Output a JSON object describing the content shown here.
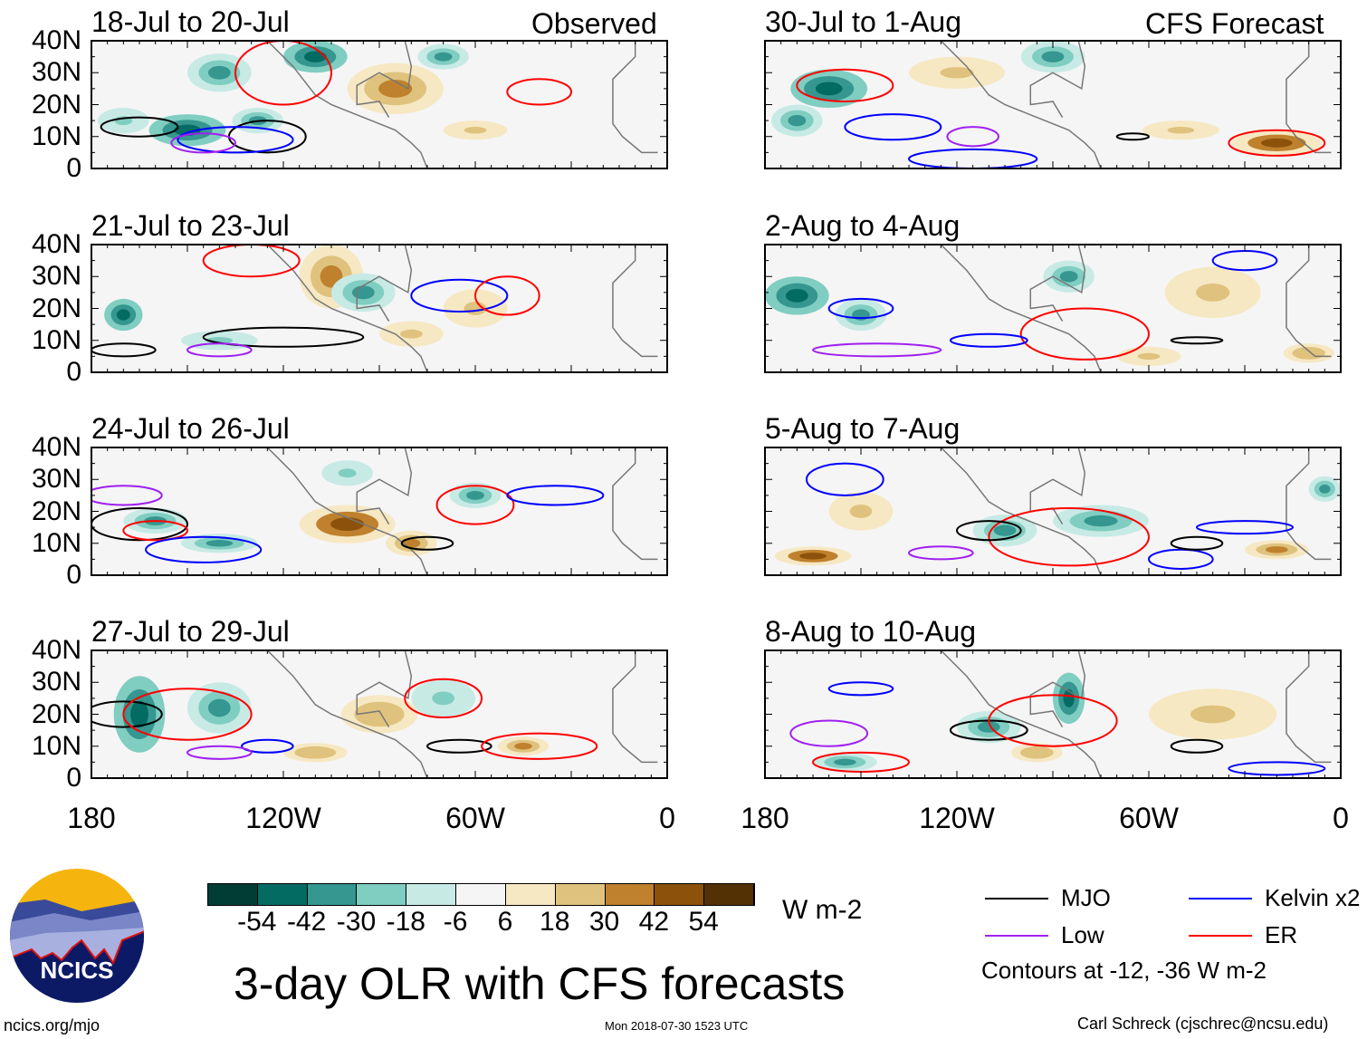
{
  "chart_data": {
    "type": "heatmap",
    "title": "3-day OLR with CFS forecasts",
    "units": "W m-2",
    "left_header": "Observed",
    "right_header": "CFS Forecast",
    "lon_range": [
      180,
      0
    ],
    "lat_range": [
      0,
      40
    ],
    "ytick_labels": [
      "40N",
      "30N",
      "20N",
      "10N",
      "0"
    ],
    "ytick_values": [
      40,
      30,
      20,
      10,
      0
    ],
    "xtick_labels": [
      "180",
      "120W",
      "60W",
      "0"
    ],
    "xtick_values": [
      180,
      120,
      60,
      0
    ],
    "colorbar": {
      "labels": [
        "-54",
        "-42",
        "-30",
        "-18",
        "-6",
        "6",
        "18",
        "30",
        "42",
        "54"
      ],
      "colors": [
        "#023d35",
        "#036b62",
        "#35978f",
        "#80cdc1",
        "#c7eae5",
        "#f5f5f5",
        "#f6e8c3",
        "#dfc27d",
        "#bf812d",
        "#8c510a",
        "#543005"
      ]
    },
    "contour_legend": [
      {
        "name": "MJO",
        "color": "#000000"
      },
      {
        "name": "Kelvin x2",
        "color": "#0000ff"
      },
      {
        "name": "Low",
        "color": "#a020f0"
      },
      {
        "name": "ER",
        "color": "#ff0000"
      }
    ],
    "contour_note": "Contours at -12, -36 W m-2",
    "panels": [
      {
        "title": "18-Jul to 20-Jul",
        "column": "observed",
        "blobs": [
          [
            150,
            12,
            12,
            5,
            -45
          ],
          [
            128,
            15,
            8,
            4,
            -40
          ],
          [
            140,
            30,
            10,
            6,
            -30
          ],
          [
            110,
            35,
            10,
            5,
            -45
          ],
          [
            85,
            25,
            15,
            8,
            35
          ],
          [
            60,
            12,
            10,
            3,
            25
          ],
          [
            170,
            15,
            8,
            4,
            -25
          ],
          [
            70,
            35,
            8,
            4,
            -30
          ]
        ],
        "contours": [
          [
            "MJO",
            125,
            10,
            12,
            5
          ],
          [
            "MJO",
            165,
            13,
            12,
            3
          ],
          [
            "Kelvin x2",
            135,
            9,
            18,
            4
          ],
          [
            "ER",
            120,
            30,
            15,
            10
          ],
          [
            "ER",
            40,
            24,
            10,
            4
          ],
          [
            "Low",
            145,
            8,
            10,
            3
          ]
        ]
      },
      {
        "title": "30-Jul to 1-Aug",
        "column": "forecast",
        "blobs": [
          [
            160,
            25,
            12,
            6,
            -45
          ],
          [
            170,
            15,
            8,
            5,
            -40
          ],
          [
            90,
            35,
            10,
            5,
            -30
          ],
          [
            20,
            8,
            14,
            4,
            45
          ],
          [
            50,
            12,
            12,
            3,
            25
          ],
          [
            120,
            30,
            15,
            5,
            20
          ]
        ],
        "contours": [
          [
            "ER",
            155,
            26,
            15,
            5
          ],
          [
            "Kelvin x2",
            140,
            13,
            15,
            4
          ],
          [
            "MJO",
            65,
            10,
            5,
            1
          ],
          [
            "ER",
            20,
            8,
            15,
            4
          ],
          [
            "Kelvin x2",
            115,
            3,
            20,
            3
          ],
          [
            "Low",
            115,
            10,
            8,
            3
          ]
        ]
      },
      {
        "title": "21-Jul to 23-Jul",
        "column": "observed",
        "blobs": [
          [
            105,
            30,
            10,
            10,
            40
          ],
          [
            170,
            18,
            6,
            5,
            -45
          ],
          [
            80,
            12,
            10,
            4,
            25
          ],
          [
            140,
            10,
            12,
            3,
            -25
          ],
          [
            95,
            25,
            10,
            6,
            -30
          ],
          [
            60,
            20,
            10,
            6,
            25
          ]
        ],
        "contours": [
          [
            "MJO",
            120,
            11,
            25,
            3
          ],
          [
            "MJO",
            170,
            7,
            10,
            2
          ],
          [
            "Kelvin x2",
            65,
            24,
            15,
            5
          ],
          [
            "ER",
            50,
            24,
            10,
            6
          ],
          [
            "ER",
            130,
            35,
            15,
            5
          ],
          [
            "Low",
            140,
            7,
            10,
            2
          ]
        ]
      },
      {
        "title": "2-Aug to 4-Aug",
        "column": "forecast",
        "blobs": [
          [
            170,
            24,
            10,
            6,
            -45
          ],
          [
            150,
            18,
            8,
            5,
            -40
          ],
          [
            85,
            30,
            8,
            5,
            -35
          ],
          [
            40,
            25,
            15,
            8,
            20
          ],
          [
            60,
            5,
            10,
            3,
            25
          ],
          [
            10,
            6,
            8,
            3,
            30
          ]
        ],
        "contours": [
          [
            "ER",
            80,
            12,
            20,
            8
          ],
          [
            "Kelvin x2",
            150,
            20,
            10,
            3
          ],
          [
            "Kelvin x2",
            110,
            10,
            12,
            2
          ],
          [
            "MJO",
            45,
            10,
            8,
            1
          ],
          [
            "Low",
            145,
            7,
            20,
            2
          ],
          [
            "Kelvin x2",
            30,
            35,
            10,
            3
          ]
        ]
      },
      {
        "title": "24-Jul to 26-Jul",
        "column": "observed",
        "blobs": [
          [
            100,
            16,
            15,
            6,
            45
          ],
          [
            80,
            10,
            8,
            4,
            35
          ],
          [
            60,
            25,
            8,
            4,
            -40
          ],
          [
            140,
            10,
            12,
            3,
            -35
          ],
          [
            160,
            17,
            10,
            4,
            -30
          ],
          [
            100,
            32,
            8,
            4,
            -25
          ]
        ],
        "contours": [
          [
            "MJO",
            165,
            16,
            15,
            5
          ],
          [
            "ER",
            160,
            14,
            10,
            3
          ],
          [
            "Kelvin x2",
            145,
            8,
            18,
            4
          ],
          [
            "ER",
            60,
            22,
            12,
            6
          ],
          [
            "Kelvin x2",
            35,
            25,
            15,
            3
          ],
          [
            "MJO",
            75,
            10,
            8,
            2
          ],
          [
            "Low",
            170,
            25,
            12,
            3
          ]
        ]
      },
      {
        "title": "5-Aug to 7-Aug",
        "column": "forecast",
        "blobs": [
          [
            165,
            6,
            12,
            3,
            45
          ],
          [
            105,
            14,
            10,
            5,
            -35
          ],
          [
            75,
            17,
            15,
            5,
            -30
          ],
          [
            20,
            8,
            10,
            3,
            40
          ],
          [
            150,
            20,
            10,
            6,
            20
          ],
          [
            5,
            27,
            5,
            4,
            -40
          ]
        ],
        "contours": [
          [
            "ER",
            85,
            12,
            25,
            9
          ],
          [
            "Kelvin x2",
            155,
            30,
            12,
            5
          ],
          [
            "MJO",
            110,
            14,
            10,
            3
          ],
          [
            "Kelvin x2",
            30,
            15,
            15,
            2
          ],
          [
            "Kelvin x2",
            50,
            5,
            10,
            3
          ],
          [
            "Low",
            125,
            7,
            10,
            2
          ],
          [
            "MJO",
            45,
            10,
            8,
            2
          ]
        ]
      },
      {
        "title": "27-Jul to 29-Jul",
        "column": "observed",
        "blobs": [
          [
            165,
            20,
            8,
            12,
            -45
          ],
          [
            140,
            22,
            10,
            8,
            -30
          ],
          [
            90,
            20,
            12,
            6,
            30
          ],
          [
            45,
            10,
            8,
            3,
            35
          ],
          [
            70,
            25,
            10,
            6,
            -25
          ],
          [
            110,
            8,
            10,
            3,
            30
          ]
        ],
        "contours": [
          [
            "MJO",
            170,
            20,
            12,
            4
          ],
          [
            "ER",
            150,
            20,
            20,
            8
          ],
          [
            "Kelvin x2",
            125,
            10,
            8,
            2
          ],
          [
            "ER",
            70,
            25,
            12,
            6
          ],
          [
            "MJO",
            65,
            10,
            10,
            2
          ],
          [
            "ER",
            40,
            10,
            18,
            4
          ],
          [
            "Low",
            140,
            8,
            10,
            2
          ]
        ]
      },
      {
        "title": "8-Aug to 10-Aug",
        "column": "forecast",
        "blobs": [
          [
            110,
            16,
            10,
            5,
            -40
          ],
          [
            85,
            25,
            5,
            8,
            -45
          ],
          [
            40,
            20,
            20,
            8,
            20
          ],
          [
            155,
            5,
            10,
            3,
            -35
          ],
          [
            95,
            8,
            8,
            3,
            30
          ]
        ],
        "contours": [
          [
            "MJO",
            110,
            15,
            12,
            3
          ],
          [
            "ER",
            90,
            18,
            20,
            8
          ],
          [
            "Kelvin x2",
            150,
            28,
            10,
            2
          ],
          [
            "ER",
            150,
            5,
            15,
            3
          ],
          [
            "MJO",
            45,
            10,
            8,
            2
          ],
          [
            "Kelvin x2",
            20,
            3,
            15,
            2
          ],
          [
            "Low",
            160,
            14,
            12,
            4
          ]
        ]
      }
    ]
  },
  "footer": {
    "logo_text": "NCICS",
    "url": "ncics.org/mjo",
    "timestamp": "Mon 2018-07-30 1523 UTC",
    "credit": "Carl Schreck (cjschrec@ncsu.edu)"
  }
}
